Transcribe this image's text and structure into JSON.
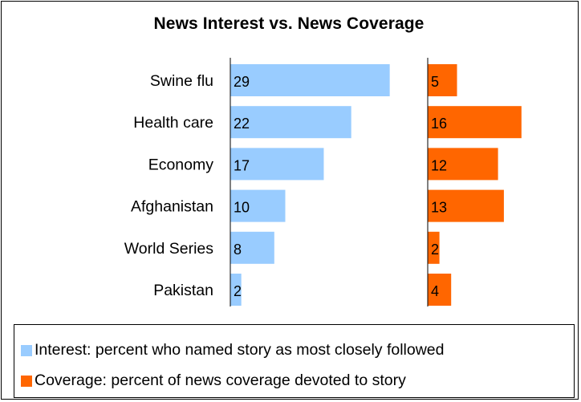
{
  "chart_data": {
    "type": "bar",
    "title": "News Interest vs. News Coverage",
    "categories": [
      "Swine flu",
      "Health care",
      "Economy",
      "Afghanistan",
      "World Series",
      "Pakistan"
    ],
    "series": [
      {
        "name": "Interest: percent who named story as most closely followed",
        "values": [
          29,
          22,
          17,
          10,
          8,
          2
        ],
        "color": "#99ccff"
      },
      {
        "name": "Coverage: percent of news coverage devoted to story",
        "values": [
          5,
          16,
          12,
          13,
          2,
          4
        ],
        "color": "#ff6600"
      }
    ],
    "orientation": "horizontal",
    "layout": "side-by-side panels",
    "legend": "bottom"
  }
}
